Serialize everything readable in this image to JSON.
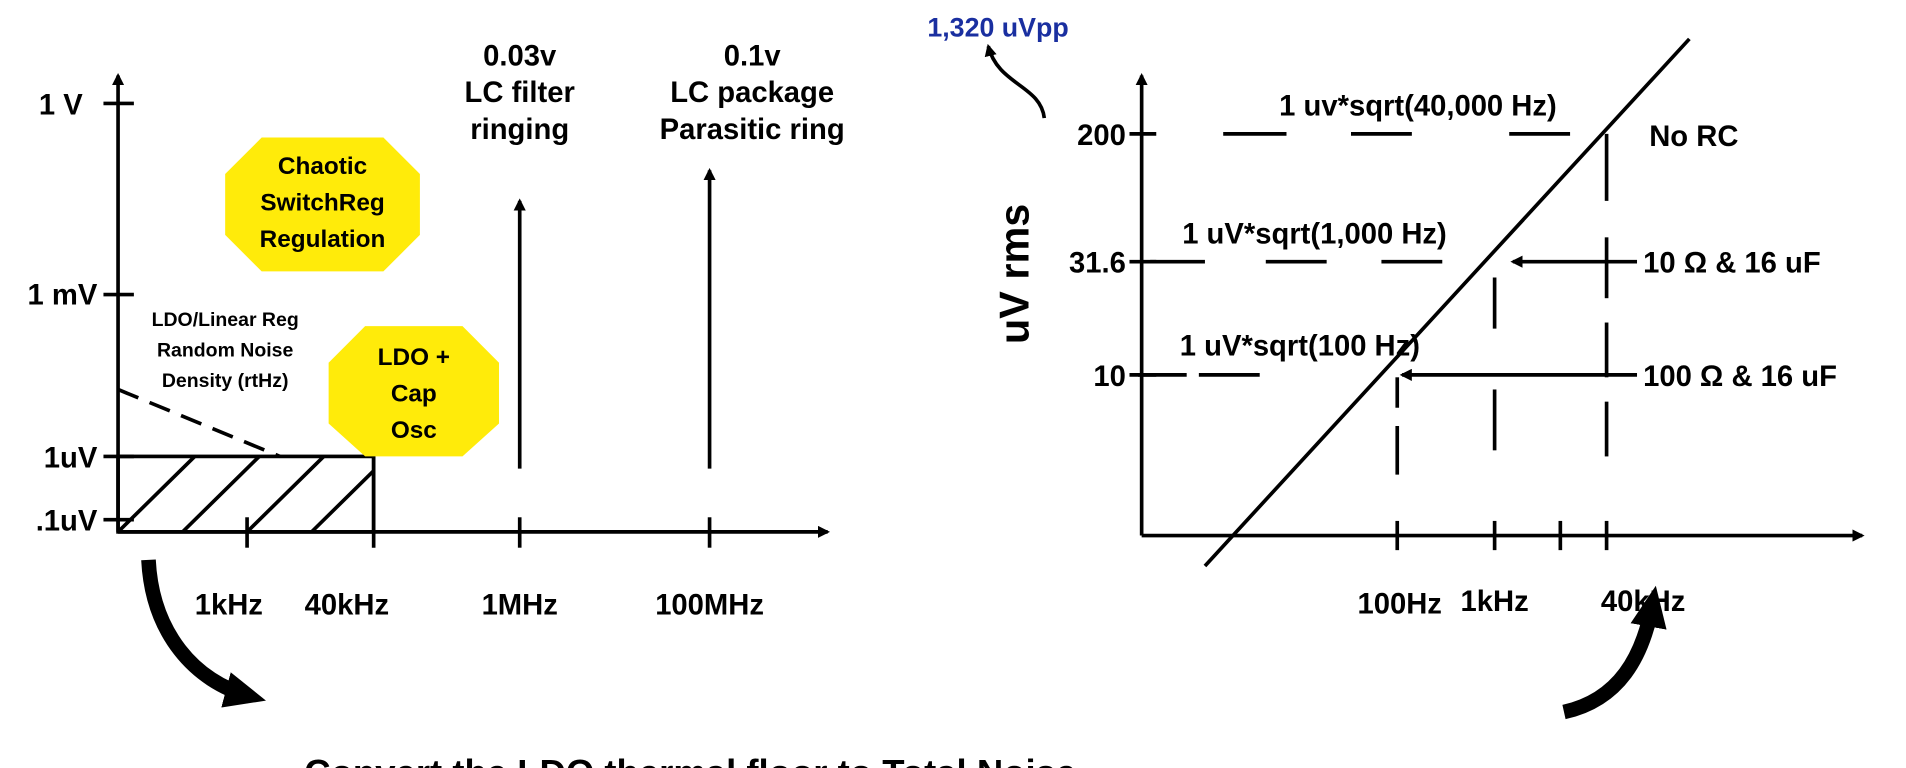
{
  "left_chart": {
    "y_labels": [
      "1 V",
      "1 mV",
      "1uV",
      ".1uV"
    ],
    "x_labels": [
      "1kHz",
      "40kHz",
      "1MHz",
      "100MHz"
    ],
    "spike_1": [
      "0.03v",
      "LC filter",
      "ringing"
    ],
    "spike_2": [
      "0.1v",
      "LC package",
      "Parasitic ring"
    ],
    "chaotic_badge": [
      "Chaotic",
      "SwitchReg",
      "Regulation"
    ],
    "ldo_note": [
      "LDO/Linear Reg",
      "Random Noise",
      "Density (rtHz)"
    ],
    "ldo_badge": [
      "LDO +",
      "Cap",
      "Osc"
    ]
  },
  "right_chart": {
    "peak_label": "1,320 uVpp",
    "y_title": "uV rms",
    "y_labels": [
      "200",
      "31.6",
      "10"
    ],
    "line_labels": [
      "1 uv*sqrt(40,000 Hz)",
      "1 uV*sqrt(1,000 Hz)",
      "1 uV*sqrt(100 Hz)"
    ],
    "filter_labels": [
      "No RC",
      "10 Ω & 16 uF",
      "100 Ω & 16 uF"
    ],
    "x_labels": [
      "100Hz",
      "1kHz",
      "40kHz"
    ]
  },
  "caption": "Convert the LDO thermal floor to Total Noise"
}
